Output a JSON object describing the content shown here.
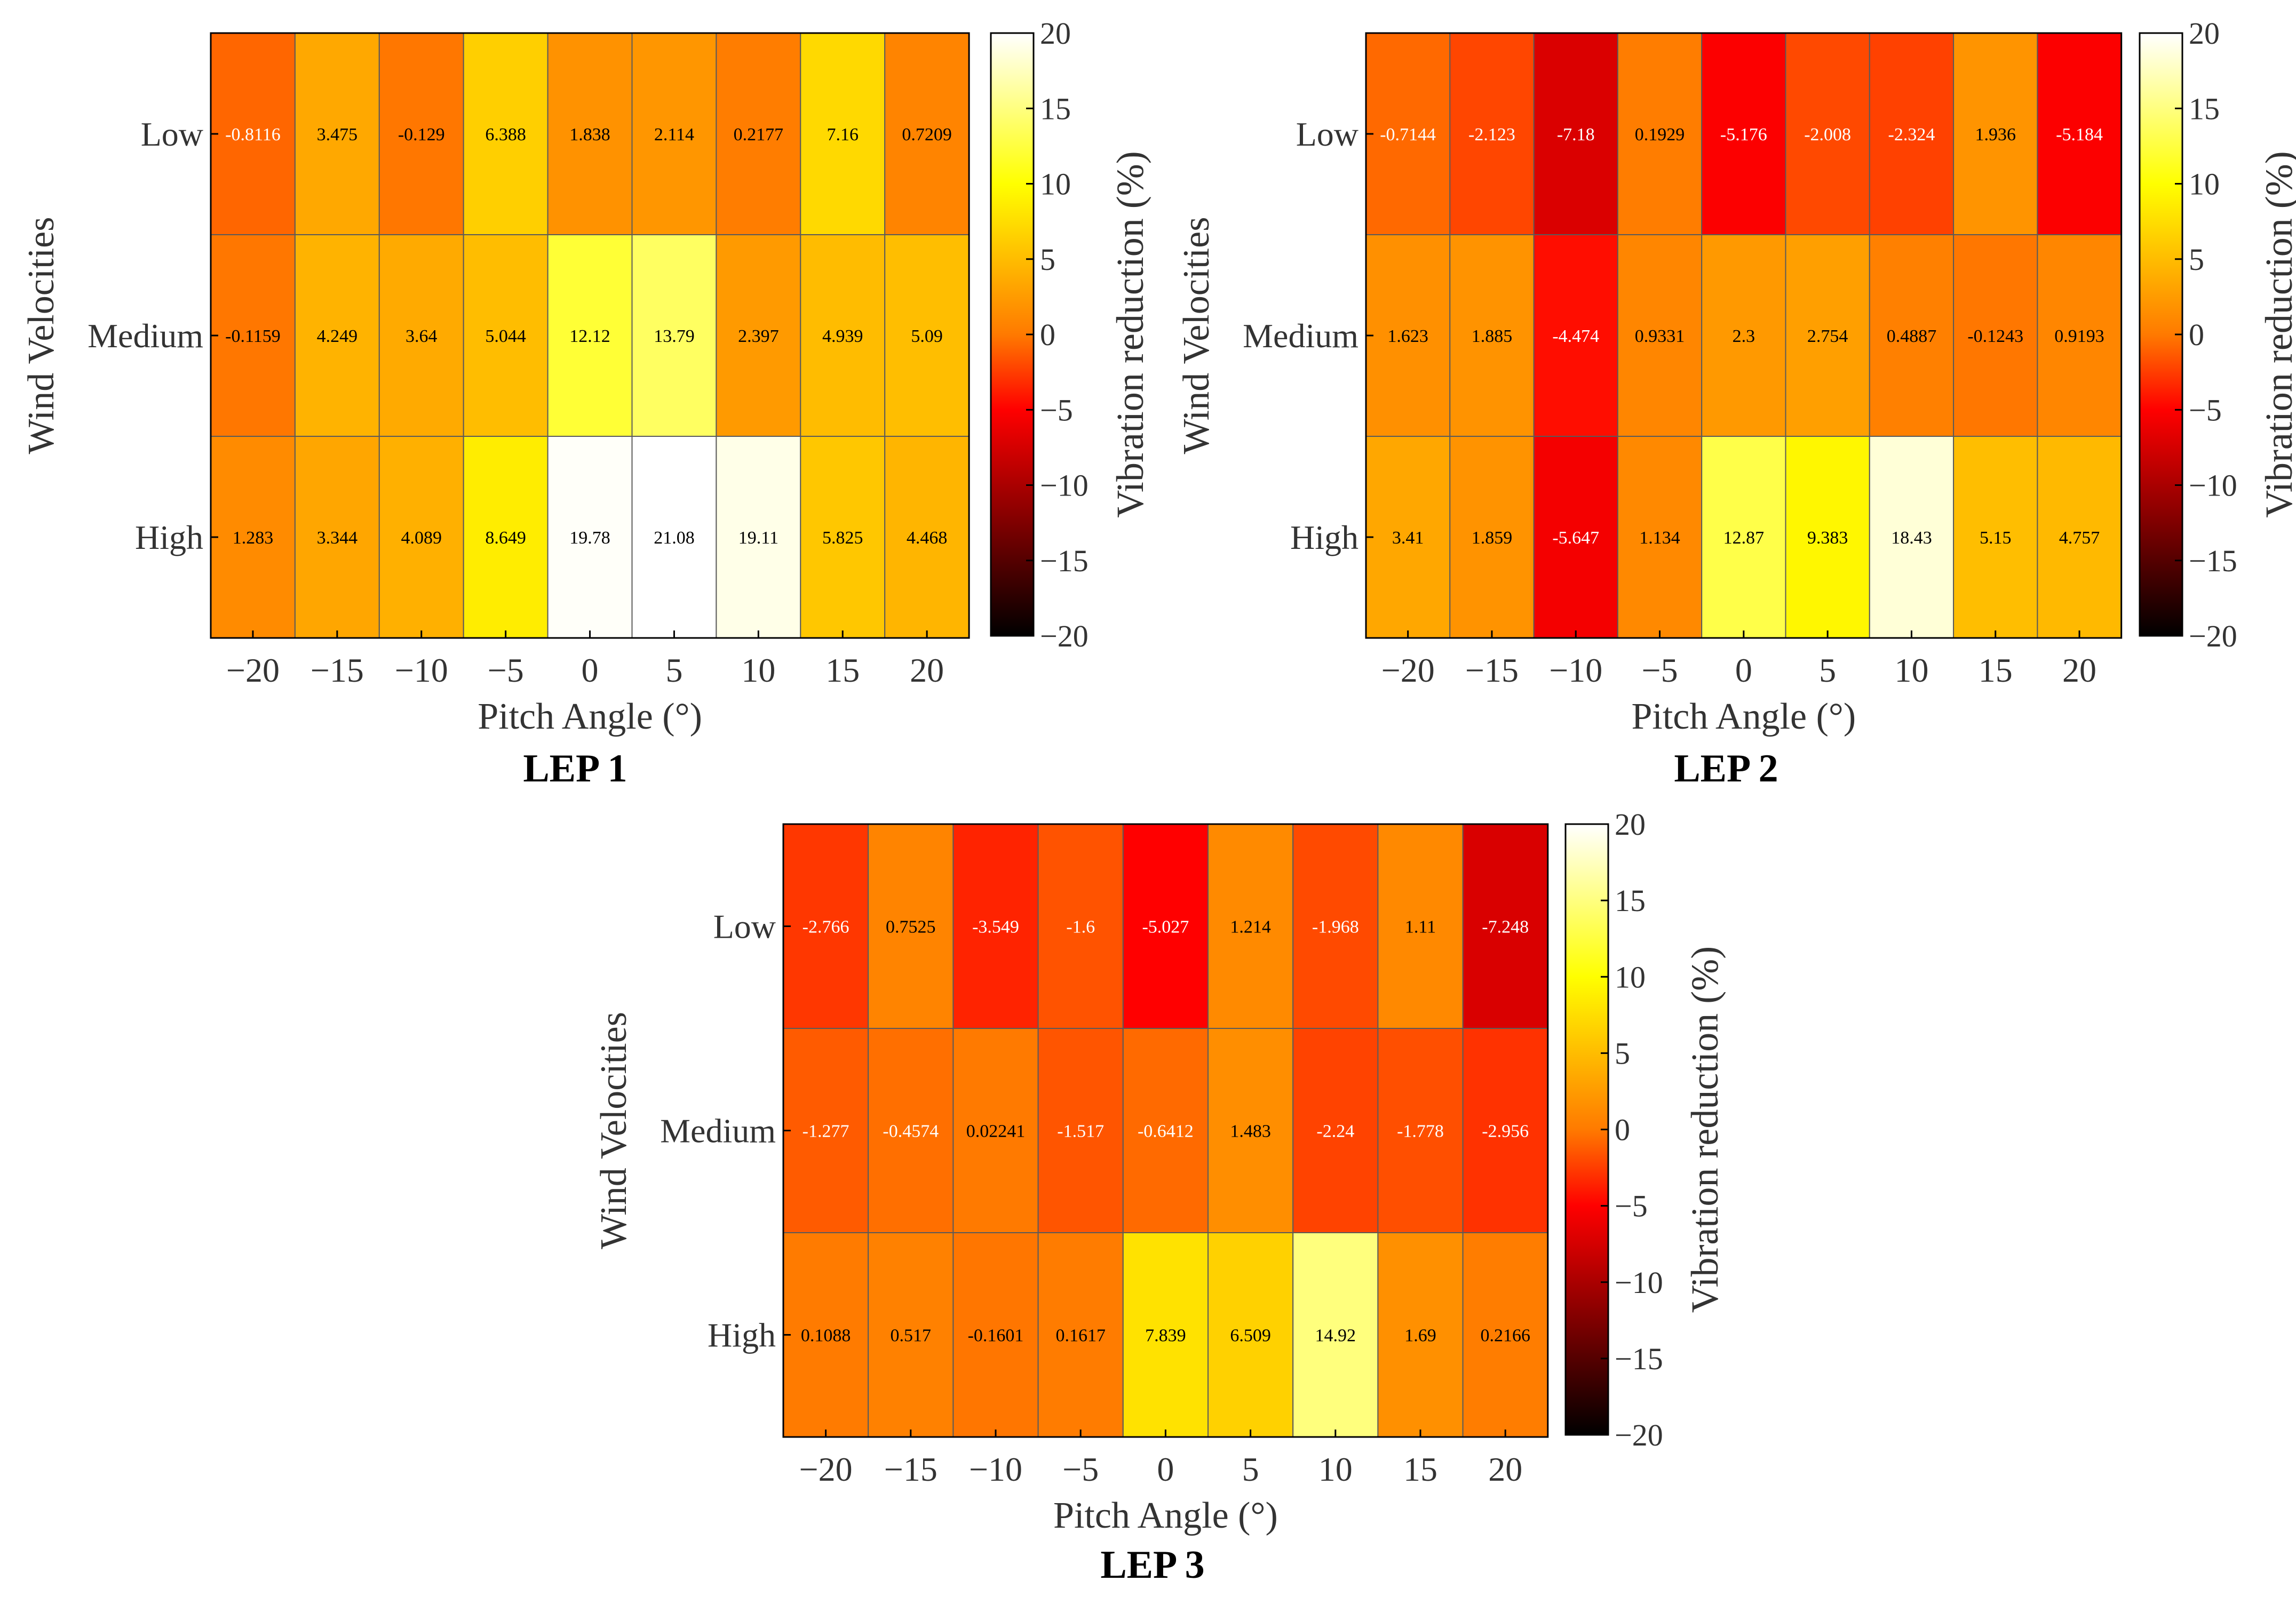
{
  "chart_data": [
    {
      "type": "heatmap",
      "panel_label": "LEP 1",
      "xlabel": "Pitch Angle (°)",
      "ylabel": "Wind Velocities",
      "x_categories": [
        "−20",
        "−15",
        "−10",
        "−5",
        "0",
        "5",
        "10",
        "15",
        "20"
      ],
      "y_categories": [
        "Low",
        "Medium",
        "High"
      ],
      "values": [
        [
          "-0.8116",
          "3.475",
          "-0.129",
          "6.388",
          "1.838",
          "2.114",
          "0.2177",
          "7.16",
          "0.7209"
        ],
        [
          "-0.1159",
          "4.249",
          "3.64",
          "5.044",
          "12.12",
          "13.79",
          "2.397",
          "4.939",
          "5.09"
        ],
        [
          "1.283",
          "3.344",
          "4.089",
          "8.649",
          "19.78",
          "21.08",
          "19.11",
          "5.825",
          "4.468"
        ]
      ],
      "colorbar": {
        "label": "Vibration reduction (%)",
        "range": [
          -20,
          20
        ],
        "ticks": [
          "20",
          "15",
          "10",
          "5",
          "0",
          "−5",
          "−10",
          "−15",
          "−20"
        ],
        "colors": [
          "#000000",
          "#ff0000",
          "#ffff00",
          "#ffffff"
        ]
      }
    },
    {
      "type": "heatmap",
      "panel_label": "LEP 2",
      "xlabel": "Pitch Angle (°)",
      "ylabel": "Wind Velocities",
      "x_categories": [
        "−20",
        "−15",
        "−10",
        "−5",
        "0",
        "5",
        "10",
        "15",
        "20"
      ],
      "y_categories": [
        "Low",
        "Medium",
        "High"
      ],
      "values": [
        [
          "-0.7144",
          "-2.123",
          "-7.18",
          "0.1929",
          "-5.176",
          "-2.008",
          "-2.324",
          "1.936",
          "-5.184"
        ],
        [
          "1.623",
          "1.885",
          "-4.474",
          "0.9331",
          "2.3",
          "2.754",
          "0.4887",
          "-0.1243",
          "0.9193"
        ],
        [
          "3.41",
          "1.859",
          "-5.647",
          "1.134",
          "12.87",
          "9.383",
          "18.43",
          "5.15",
          "4.757"
        ]
      ],
      "colorbar": {
        "label": "Vibration reduction (%)",
        "range": [
          -20,
          20
        ],
        "ticks": [
          "20",
          "15",
          "10",
          "5",
          "0",
          "−5",
          "−10",
          "−15",
          "−20"
        ],
        "colors": [
          "#000000",
          "#ff0000",
          "#ffff00",
          "#ffffff"
        ]
      }
    },
    {
      "type": "heatmap",
      "panel_label": "LEP 3",
      "xlabel": "Pitch Angle (°)",
      "ylabel": "Wind Velocities",
      "x_categories": [
        "−20",
        "−15",
        "−10",
        "−5",
        "0",
        "5",
        "10",
        "15",
        "20"
      ],
      "y_categories": [
        "Low",
        "Medium",
        "High"
      ],
      "values": [
        [
          "-2.766",
          "0.7525",
          "-3.549",
          "-1.6",
          "-5.027",
          "1.214",
          "-1.968",
          "1.11",
          "-7.248"
        ],
        [
          "-1.277",
          "-0.4574",
          "0.02241",
          "-1.517",
          "-0.6412",
          "1.483",
          "-2.24",
          "-1.778",
          "-2.956"
        ],
        [
          "0.1088",
          "0.517",
          "-0.1601",
          "0.1617",
          "7.839",
          "6.509",
          "14.92",
          "1.69",
          "0.2166"
        ]
      ],
      "colorbar": {
        "label": "Vibration reduction (%)",
        "range": [
          -20,
          20
        ],
        "ticks": [
          "20",
          "15",
          "10",
          "5",
          "0",
          "−5",
          "−10",
          "−15",
          "−20"
        ],
        "colors": [
          "#000000",
          "#ff0000",
          "#ffff00",
          "#ffffff"
        ]
      }
    }
  ]
}
